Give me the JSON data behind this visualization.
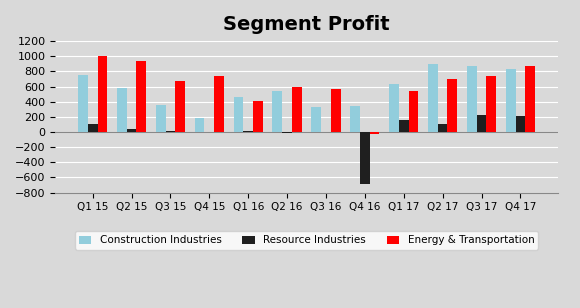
{
  "title": "Segment Profit",
  "categories": [
    "Q1 15",
    "Q2 15",
    "Q3 15",
    "Q4 15",
    "Q1 16",
    "Q2 16",
    "Q3 16",
    "Q4 16",
    "Q1 17",
    "Q2 17",
    "Q3 17",
    "Q4 17"
  ],
  "series": {
    "Construction Industries": [
      750,
      580,
      360,
      190,
      460,
      545,
      330,
      340,
      635,
      900,
      870,
      835
    ],
    "Resource Industries": [
      100,
      35,
      10,
      5,
      10,
      -10,
      5,
      -680,
      160,
      100,
      230,
      215
    ],
    "Energy & Transportation": [
      1005,
      940,
      680,
      745,
      415,
      600,
      570,
      -30,
      545,
      695,
      745,
      870
    ]
  },
  "colors": {
    "Construction Industries": "#92CDDC",
    "Energy & Transportation": "#FF0000",
    "Resource Industries": "#1F1F1F"
  },
  "ylim": [
    -800,
    1200
  ],
  "yticks": [
    -800,
    -600,
    -400,
    -200,
    0,
    200,
    400,
    600,
    800,
    1000,
    1200
  ],
  "background_color": "#D9D9D9",
  "bar_width": 0.25,
  "legend_loc": "lower center",
  "title_fontsize": 14
}
